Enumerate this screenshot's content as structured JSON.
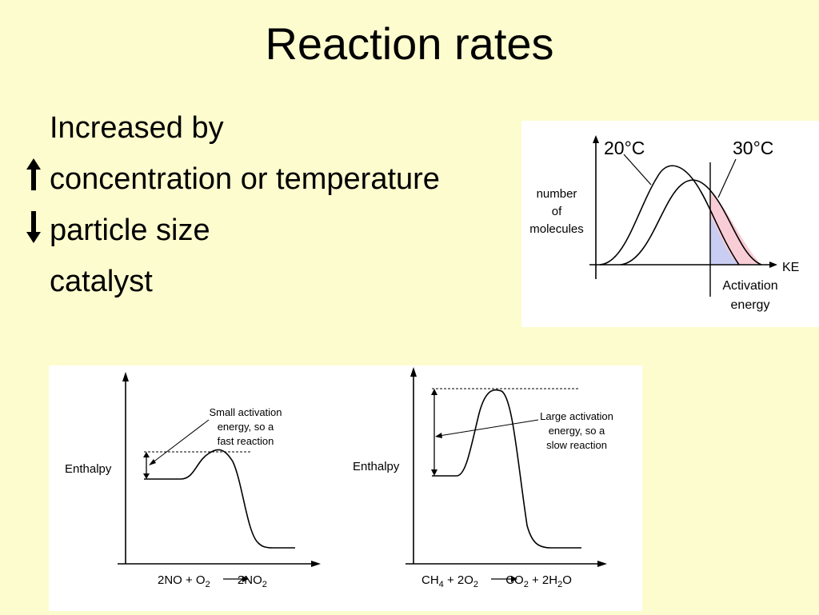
{
  "slide": {
    "title": "Reaction rates",
    "bullets": [
      {
        "text": "Increased by",
        "marker": ""
      },
      {
        "text": "concentration or temperature",
        "marker": "up-arrow-icon"
      },
      {
        "text": "particle size",
        "marker": "down-arrow-icon"
      },
      {
        "text": "catalyst",
        "marker": ""
      }
    ]
  },
  "distribution_diagram": {
    "y_label_lines": [
      "number",
      "of",
      "molecules"
    ],
    "x_label": "KE",
    "curve_labels": [
      "20°C",
      "30°C"
    ],
    "threshold_label_lines": [
      "Activation",
      "energy"
    ],
    "colors": {
      "extra_fraction_30C": "#f9cdd6",
      "fraction_20C": "#c9cdf2"
    }
  },
  "energy_diagrams": [
    {
      "y_label": "Enthalpy",
      "annotation_lines": [
        "Small activation",
        "energy, so a",
        "fast reaction"
      ],
      "equation": {
        "parts": [
          "2NO + O",
          "2",
          " ",
          "2NO",
          "2"
        ]
      }
    },
    {
      "y_label": "Enthalpy",
      "annotation_lines": [
        "Large activation",
        "energy, so a",
        "slow reaction"
      ],
      "equation": {
        "parts": [
          "CH",
          "4",
          " + 2O",
          "2",
          " ",
          "CO",
          "2",
          " + 2H",
          "2",
          "O"
        ]
      }
    }
  ]
}
